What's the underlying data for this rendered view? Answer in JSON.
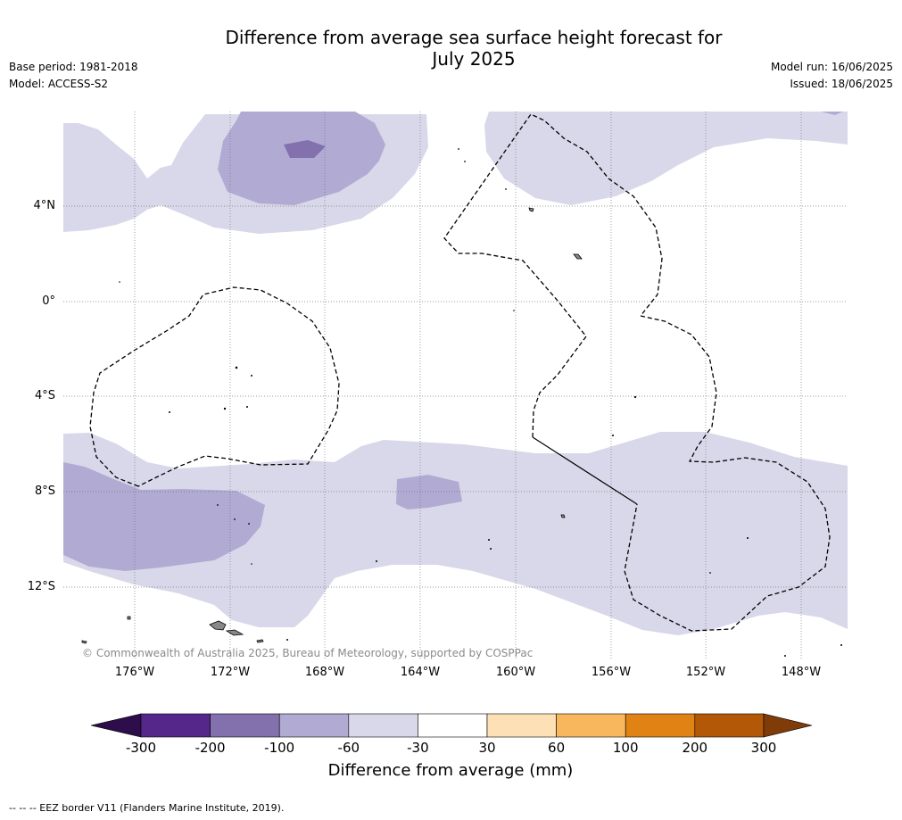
{
  "title_line1": "Difference from average sea surface height forecast for",
  "title_line2": "July 2025",
  "left_meta": {
    "base_period": "Base period: 1981-2018",
    "model": "Model: ACCESS-S2"
  },
  "right_meta": {
    "model_run": "Model run: 16/06/2025",
    "issued": "Issued: 18/06/2025"
  },
  "lat_labels": [
    "4°N",
    "0°",
    "4°S",
    "8°S",
    "12°S"
  ],
  "lon_labels": [
    "176°W",
    "172°W",
    "168°W",
    "164°W",
    "160°W",
    "156°W",
    "152°W",
    "148°W"
  ],
  "copyright": "© Commonwealth of Australia 2025, Bureau of Meteorology, supported by COSPPac",
  "colorbar": {
    "ticks": [
      "-300",
      "-200",
      "-100",
      "-60",
      "-30",
      "30",
      "60",
      "100",
      "200",
      "300"
    ],
    "colors": [
      "#2d0d4a",
      "#56278a",
      "#8271ad",
      "#b1aad2",
      "#d8d8ea",
      "#ffffff",
      "#fee0b6",
      "#f8b75c",
      "#e08214",
      "#b35806",
      "#7f3b08"
    ],
    "title": "Difference from average (mm)"
  },
  "footnote": "--  --  -- EEZ border V11 (Flanders Marine Institute, 2019)."
}
